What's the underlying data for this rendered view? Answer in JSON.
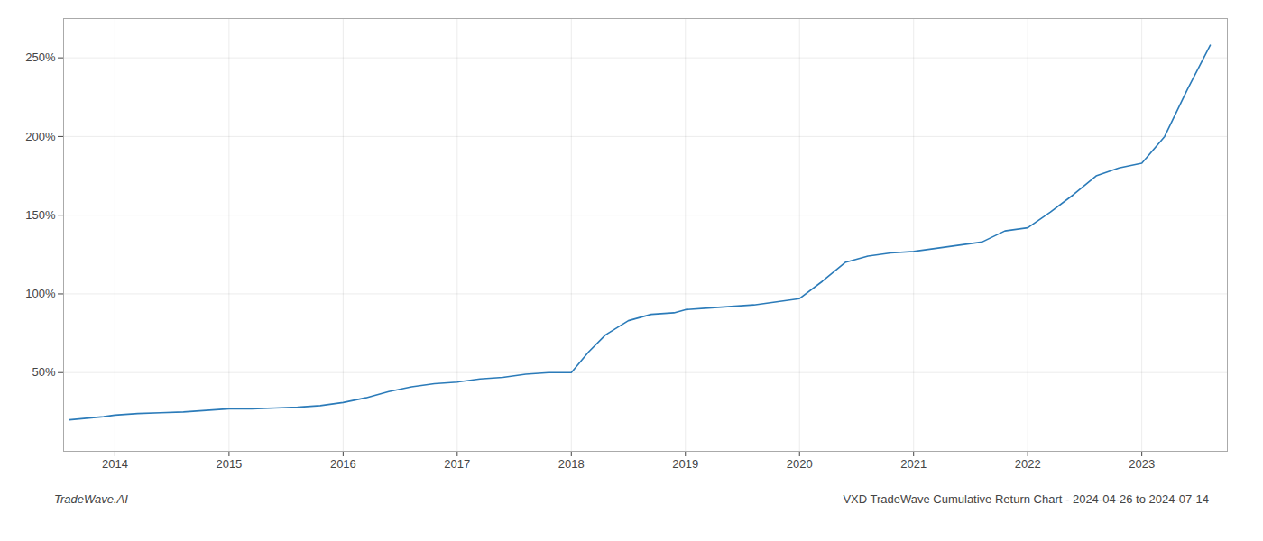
{
  "chart_data": {
    "type": "line",
    "title": "VXD TradeWave Cumulative Return Chart - 2024-04-26 to 2024-07-14",
    "annotations": [
      "TradeWave.AI"
    ],
    "color": "#2b7bb9",
    "grid": true,
    "xlim": [
      2013.55,
      2023.75
    ],
    "xticks": [
      2014,
      2015,
      2016,
      2017,
      2018,
      2019,
      2020,
      2021,
      2022,
      2023
    ],
    "ylim": [
      0,
      275
    ],
    "yticks": [
      {
        "value": 50,
        "label": "50%"
      },
      {
        "value": 100,
        "label": "100%"
      },
      {
        "value": 150,
        "label": "150%"
      },
      {
        "value": 200,
        "label": "200%"
      },
      {
        "value": 250,
        "label": "250%"
      }
    ],
    "x": [
      2013.6,
      2013.75,
      2013.9,
      2014.0,
      2014.2,
      2014.4,
      2014.6,
      2014.8,
      2015.0,
      2015.2,
      2015.4,
      2015.6,
      2015.8,
      2016.0,
      2016.2,
      2016.4,
      2016.6,
      2016.8,
      2017.0,
      2017.2,
      2017.4,
      2017.6,
      2017.8,
      2018.0,
      2018.15,
      2018.3,
      2018.5,
      2018.7,
      2018.9,
      2019.0,
      2019.2,
      2019.4,
      2019.6,
      2019.8,
      2020.0,
      2020.2,
      2020.4,
      2020.6,
      2020.8,
      2021.0,
      2021.2,
      2021.4,
      2021.6,
      2021.8,
      2022.0,
      2022.2,
      2022.4,
      2022.6,
      2022.8,
      2023.0,
      2023.2,
      2023.4,
      2023.6
    ],
    "values": [
      20,
      21,
      22,
      23,
      24,
      24.5,
      25,
      26,
      27,
      27,
      27.5,
      28,
      29,
      31,
      34,
      38,
      41,
      43,
      44,
      46,
      47,
      49,
      50,
      50,
      63,
      74,
      83,
      87,
      88,
      90,
      91,
      92,
      93,
      95,
      97,
      108,
      120,
      124,
      126,
      127,
      129,
      131,
      133,
      140,
      142,
      152,
      163,
      175,
      180,
      183,
      200,
      230,
      258
    ]
  }
}
